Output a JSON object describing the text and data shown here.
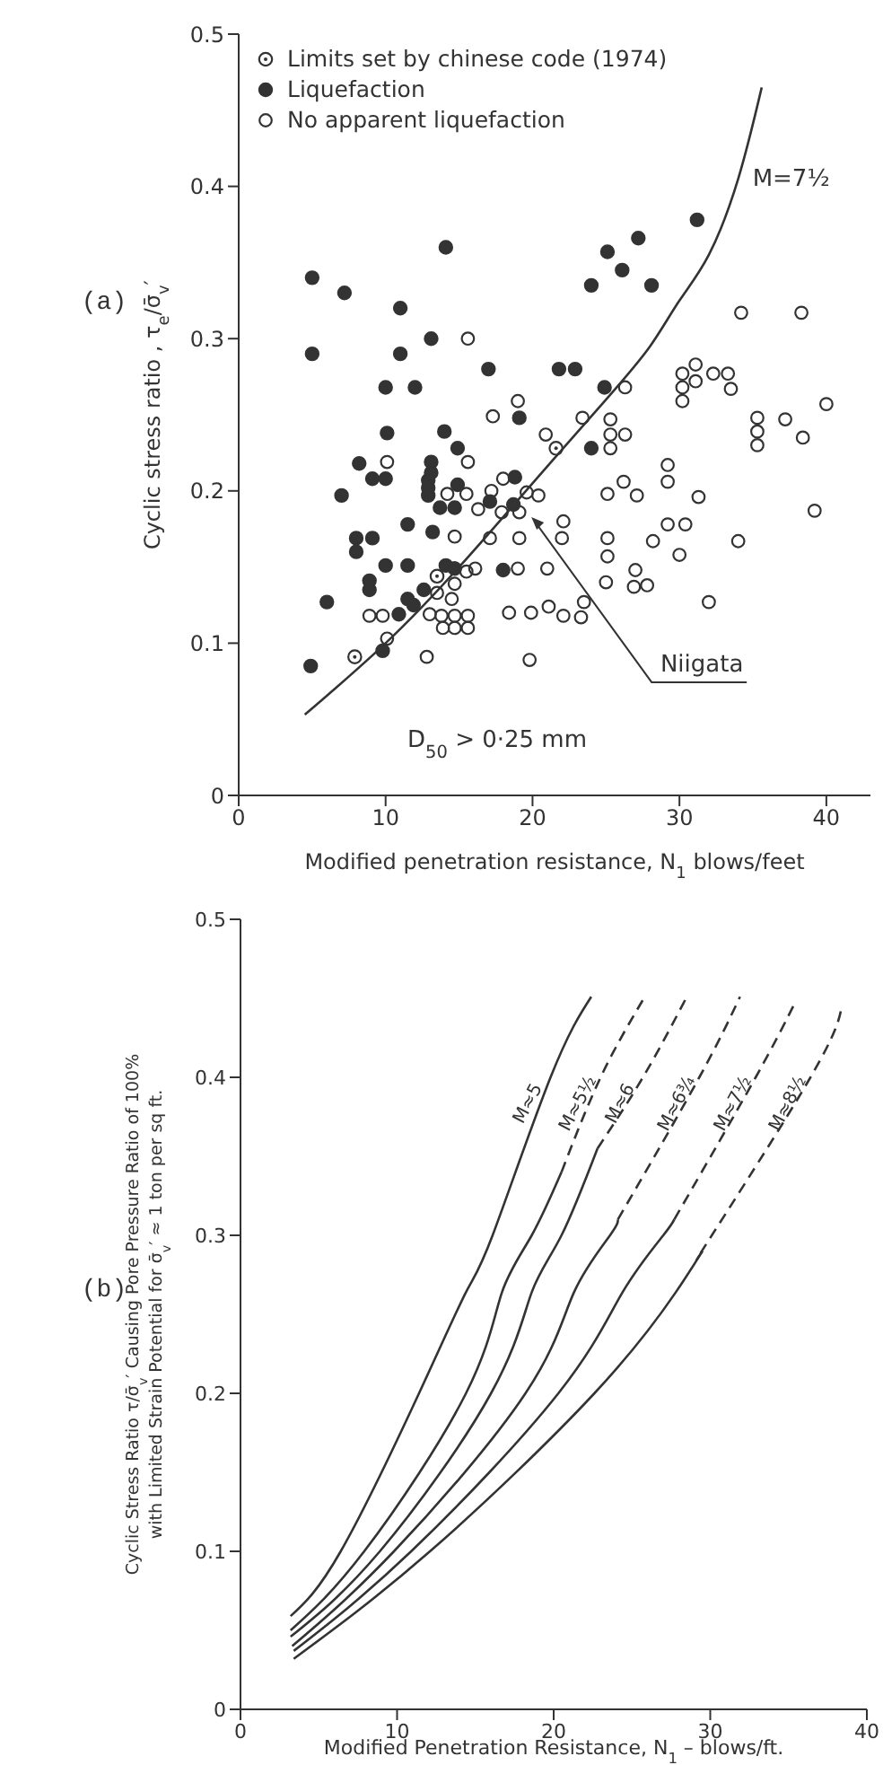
{
  "chart_data": [
    {
      "type": "scatter",
      "xlabel": "Modified penetration resistance, N$_{1}$   blows/feet",
      "ylabel": "Cyclic stress ratio , τ$_{e}$/σ̄$_{v}$′",
      "xlim": [
        0,
        43
      ],
      "xticks": [
        0,
        10,
        20,
        30,
        40
      ],
      "ylim": [
        0,
        0.5
      ],
      "yticks": [
        0,
        0.1,
        0.2,
        0.3,
        0.4,
        0.5
      ],
      "legend": "top left",
      "annotations": [
        "(a)",
        "D$_{50}$ > 0·25 mm",
        {
          "text": "Niigata",
          "x": 19.8,
          "y": 0.184
        }
      ],
      "series": [
        {
          "name": "Limits set by chinese code (1974)",
          "color": "#333333",
          "marker": "circle-dot",
          "x": [
            7.9,
            13.5,
            21.6
          ],
          "values": [
            0.091,
            0.144,
            0.228
          ]
        },
        {
          "name": "Liquefaction",
          "color": "#333333",
          "marker": "circle",
          "x": [
            5,
            7.2,
            11,
            14.1,
            5,
            11,
            13.1,
            17,
            21.8,
            22.9,
            24,
            25.1,
            26.1,
            27.2,
            28.1,
            31.2,
            10,
            12,
            24.9,
            19.1,
            10.1,
            14,
            14.9,
            24,
            8.2,
            13.1,
            13.1,
            12.9,
            12.9,
            12.9,
            9.1,
            10,
            7,
            14.9,
            18.8,
            13.7,
            14.7,
            17.1,
            18.7,
            11.5,
            13.2,
            8,
            9.1,
            8,
            10,
            11.5,
            14.1,
            14.7,
            18,
            8.9,
            8.9,
            12.6,
            11.5,
            11.9,
            10.9,
            6,
            9.8,
            4.9
          ],
          "values": [
            0.34,
            0.33,
            0.32,
            0.36,
            0.29,
            0.29,
            0.3,
            0.28,
            0.28,
            0.28,
            0.335,
            0.357,
            0.345,
            0.366,
            0.335,
            0.378,
            0.268,
            0.268,
            0.268,
            0.248,
            0.238,
            0.239,
            0.228,
            0.228,
            0.218,
            0.219,
            0.212,
            0.207,
            0.202,
            0.197,
            0.208,
            0.208,
            0.197,
            0.204,
            0.209,
            0.189,
            0.189,
            0.193,
            0.191,
            0.178,
            0.173,
            0.169,
            0.169,
            0.16,
            0.151,
            0.151,
            0.151,
            0.149,
            0.148,
            0.141,
            0.135,
            0.135,
            0.129,
            0.125,
            0.119,
            0.127,
            0.095,
            0.085
          ]
        },
        {
          "name": "No apparent liquefaction",
          "color": "#333333",
          "marker": "circle-open",
          "x": [
            15.6,
            34.2,
            38.3,
            26.3,
            30.2,
            30.2,
            30.2,
            31.1,
            31.1,
            32.3,
            33.3,
            33.5,
            17.3,
            19,
            23.4,
            25.3,
            25.3,
            26.3,
            25.3,
            20.9,
            40,
            35.3,
            35.3,
            35.3,
            37.2,
            38.4,
            15.6,
            10.1,
            14.2,
            15.5,
            16.3,
            17.2,
            18,
            19.6,
            20.4,
            17.9,
            19.1,
            25.1,
            26.2,
            27.1,
            29.2,
            29.2,
            31.3,
            39.2,
            22.1,
            22,
            17.1,
            14.7,
            19.1,
            25.1,
            28.2,
            29.2,
            30.4,
            34,
            30,
            25.1,
            21,
            19,
            16.1,
            14.7,
            15.5,
            25,
            27,
            26.9,
            27.8,
            13.5,
            14.5,
            13,
            13.8,
            14.7,
            15.6,
            13.9,
            14.7,
            15.6,
            8.9,
            9.8,
            10.1,
            12.8,
            18.4,
            19.9,
            21.1,
            22.1,
            23.3,
            23.5,
            19.8,
            32
          ],
          "values": [
            0.3,
            0.317,
            0.317,
            0.268,
            0.277,
            0.268,
            0.259,
            0.283,
            0.272,
            0.277,
            0.277,
            0.267,
            0.249,
            0.259,
            0.248,
            0.247,
            0.237,
            0.237,
            0.228,
            0.237,
            0.257,
            0.248,
            0.239,
            0.23,
            0.247,
            0.235,
            0.219,
            0.219,
            0.198,
            0.198,
            0.188,
            0.2,
            0.208,
            0.199,
            0.197,
            0.186,
            0.186,
            0.198,
            0.206,
            0.197,
            0.217,
            0.206,
            0.196,
            0.187,
            0.18,
            0.169,
            0.169,
            0.17,
            0.169,
            0.169,
            0.167,
            0.178,
            0.178,
            0.167,
            0.158,
            0.157,
            0.149,
            0.149,
            0.149,
            0.139,
            0.147,
            0.14,
            0.148,
            0.137,
            0.138,
            0.133,
            0.129,
            0.119,
            0.118,
            0.118,
            0.118,
            0.11,
            0.11,
            0.11,
            0.118,
            0.118,
            0.103,
            0.091,
            0.12,
            0.12,
            0.124,
            0.118,
            0.117,
            0.127,
            0.089,
            0.127
          ]
        },
        {
          "name": "M=7½",
          "type": "line",
          "color": "#333333",
          "marker": "none",
          "line_style": "solid",
          "x": [
            4.5,
            10,
            15,
            20,
            25,
            28,
            30,
            32,
            34,
            35.6
          ],
          "values": [
            0.053,
            0.1,
            0.15,
            0.205,
            0.26,
            0.295,
            0.325,
            0.355,
            0.405,
            0.465
          ]
        }
      ]
    },
    {
      "type": "line",
      "xlabel": "Modified Penetration Resistance, N$_{1}$ – blows/ft.",
      "ylabel": "Cyclic Stress Ratio τ/σ̄$_{v}$′ Causing Pore Pressure Ratio of 100%\nwith Limited Strain Potential for σ̄$_{v}$′ ≈ 1 ton per sq ft.",
      "xlim": [
        0,
        40
      ],
      "xticks": [
        0,
        10,
        20,
        30,
        40
      ],
      "ylim": [
        0,
        0.5
      ],
      "yticks": [
        0,
        0.1,
        0.2,
        0.3,
        0.4,
        0.5
      ],
      "marker": "none",
      "line_style": "solid",
      "annotations": [
        "(b)"
      ],
      "series": [
        {
          "name": "M≈5",
          "color": "#333333",
          "x": [
            3.2,
            6.4,
            11.4,
            14.4,
            16.1,
            19.8,
            22.4
          ],
          "values": [
            0.059,
            0.1,
            0.2,
            0.264,
            0.3,
            0.4,
            0.451
          ]
        },
        {
          "color": "#333333",
          "x": [
            3.2,
            7.9,
            14.4,
            16.7,
            18.6,
            20.5
          ],
          "values": [
            0.05,
            0.1,
            0.2,
            0.264,
            0.3,
            0.34
          ]
        },
        {
          "name": "M≈5½",
          "color": "#333333",
          "line_style": "dashed",
          "x": [
            20.5,
            23,
            25.7
          ],
          "values": [
            0.34,
            0.4,
            0.449
          ]
        },
        {
          "color": "#333333",
          "x": [
            3.2,
            8.9,
            16,
            18.6,
            20.5,
            22.8
          ],
          "values": [
            0.046,
            0.1,
            0.2,
            0.264,
            0.3,
            0.355
          ]
        },
        {
          "name": "M≈6",
          "color": "#333333",
          "line_style": "dashed",
          "x": [
            22.8,
            25.7,
            28.4
          ],
          "values": [
            0.355,
            0.4,
            0.449
          ]
        },
        {
          "color": "#333333",
          "x": [
            3.3,
            9.8,
            18.2,
            21.3,
            23.6,
            24.1
          ],
          "values": [
            0.04,
            0.1,
            0.2,
            0.264,
            0.3,
            0.31
          ]
        },
        {
          "name": "M≈6¾",
          "color": "#333333",
          "line_style": "dashed",
          "x": [
            24.1,
            29.3,
            31.9
          ],
          "values": [
            0.31,
            0.4,
            0.451
          ]
        },
        {
          "color": "#333333",
          "x": [
            3.4,
            10.9,
            20.3,
            24.4,
            27,
            27.7
          ],
          "values": [
            0.037,
            0.1,
            0.2,
            0.264,
            0.3,
            0.31
          ]
        },
        {
          "name": "M≈7½",
          "color": "#333333",
          "line_style": "dashed",
          "x": [
            27.7,
            32.9,
            35.4
          ],
          "values": [
            0.31,
            0.4,
            0.447
          ]
        },
        {
          "color": "#333333",
          "x": [
            3.4,
            12.1,
            22.6,
            27.8,
            29.5
          ],
          "values": [
            0.032,
            0.1,
            0.2,
            0.264,
            0.29
          ]
        },
        {
          "name": "M≈8½",
          "color": "#333333",
          "line_style": "dashed",
          "x": [
            29.5,
            30.1,
            36.4,
            38.4
          ],
          "values": [
            0.29,
            0.3,
            0.4,
            0.445
          ]
        }
      ]
    }
  ]
}
